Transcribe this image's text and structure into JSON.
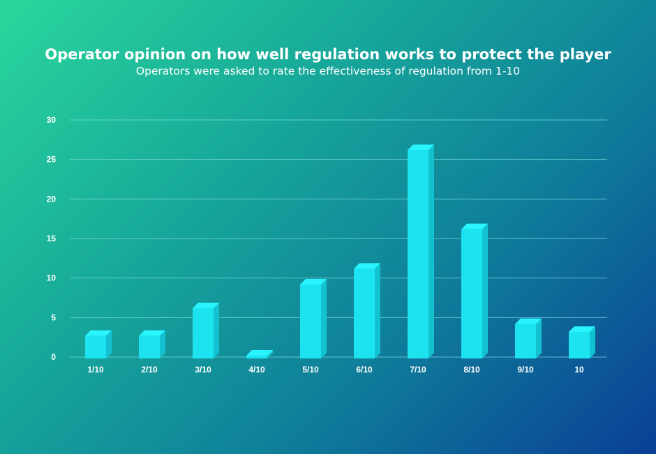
{
  "chart_data": {
    "type": "bar",
    "title": "Operator opinion on how well regulation works to protect the player",
    "subtitle": "Operators were asked to rate the effectiveness of regulation from 1-10",
    "categories": [
      "1/10",
      "2/10",
      "3/10",
      "4/10",
      "5/10",
      "6/10",
      "7/10",
      "8/10",
      "9/10",
      "10"
    ],
    "values": [
      2.5,
      2.5,
      6,
      0,
      9,
      11,
      26,
      16,
      4,
      3
    ],
    "ylim": [
      0,
      30
    ],
    "yticks": [
      0,
      5,
      10,
      15,
      20,
      25,
      30
    ],
    "grid": true,
    "xlabel": "",
    "ylabel": "",
    "colors": {
      "bar_front": "#1ce3ef",
      "bar_top": "#2af5ff",
      "bar_side": "#12c2d0",
      "grid": "#7fe0e0"
    }
  }
}
